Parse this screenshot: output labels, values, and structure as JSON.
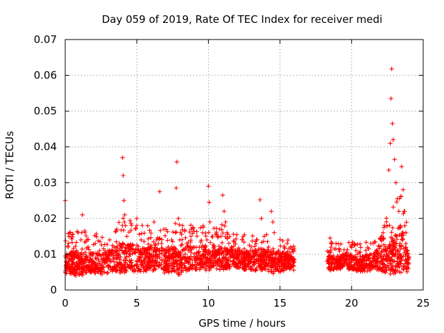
{
  "chart_data": {
    "type": "scatter",
    "title": "Day 059 of 2019, Rate Of TEC Index for receiver medi",
    "xlabel": "GPS time / hours",
    "ylabel": "ROTI / TECUs",
    "xlim": [
      0,
      25
    ],
    "ylim": [
      0,
      0.07
    ],
    "xticks": [
      0,
      5,
      10,
      15,
      20,
      25
    ],
    "yticks": [
      0,
      0.01,
      0.02,
      0.03,
      0.04,
      0.05,
      0.06,
      0.07
    ],
    "xtick_labels": [
      "0",
      "5",
      "10",
      "15",
      "20",
      "25"
    ],
    "ytick_labels": [
      "0",
      "0.01",
      "0.02",
      "0.03",
      "0.04",
      "0.05",
      "0.06",
      "0.07"
    ],
    "grid": true,
    "marker": "+",
    "marker_color": "#ff0000",
    "series": [
      {
        "name": "ROTI",
        "x": [
          0.0,
          0.05,
          0.2,
          0.35,
          0.5,
          0.8,
          1.1,
          1.2,
          1.3,
          1.6,
          1.9,
          2.1,
          2.4,
          2.8,
          3.1,
          3.4,
          3.6,
          3.8,
          4.0,
          4.05,
          4.1,
          4.15,
          4.2,
          4.3,
          4.5,
          4.8,
          5.0,
          5.3,
          5.5,
          5.9,
          6.2,
          6.5,
          6.6,
          6.9,
          7.2,
          7.5,
          7.7,
          7.75,
          7.8,
          7.9,
          8.0,
          8.2,
          8.5,
          8.8,
          9.0,
          9.3,
          9.6,
          9.9,
          10.0,
          10.05,
          10.1,
          10.4,
          10.7,
          11.0,
          11.1,
          11.2,
          11.3,
          11.6,
          11.9,
          12.2,
          12.5,
          12.8,
          13.1,
          13.4,
          13.6,
          13.7,
          13.9,
          14.2,
          14.4,
          14.5,
          14.6,
          14.9,
          15.2,
          15.5,
          15.8,
          16.0,
          18.3,
          18.5,
          18.8,
          19.1,
          19.4,
          19.7,
          20.0,
          20.3,
          20.6,
          20.9,
          21.2,
          21.5,
          21.8,
          22.0,
          22.2,
          22.4,
          22.6,
          22.7,
          22.75,
          22.8,
          22.85,
          22.9,
          23.0,
          23.1,
          23.2,
          23.3,
          23.4,
          23.5,
          23.6,
          23.7,
          23.8,
          23.9,
          24.0
        ],
        "y": [
          0.025,
          0.0095,
          0.012,
          0.016,
          0.0085,
          0.011,
          0.014,
          0.021,
          0.01,
          0.012,
          0.0095,
          0.013,
          0.011,
          0.0105,
          0.014,
          0.012,
          0.017,
          0.013,
          0.037,
          0.032,
          0.025,
          0.021,
          0.018,
          0.015,
          0.012,
          0.0105,
          0.02,
          0.014,
          0.011,
          0.0115,
          0.019,
          0.013,
          0.0275,
          0.017,
          0.012,
          0.0135,
          0.016,
          0.0285,
          0.0358,
          0.02,
          0.014,
          0.018,
          0.013,
          0.017,
          0.012,
          0.0105,
          0.016,
          0.014,
          0.029,
          0.0245,
          0.019,
          0.012,
          0.015,
          0.0265,
          0.022,
          0.019,
          0.016,
          0.012,
          0.011,
          0.01,
          0.0115,
          0.0095,
          0.011,
          0.014,
          0.0252,
          0.02,
          0.015,
          0.012,
          0.022,
          0.019,
          0.016,
          0.011,
          0.0105,
          0.0095,
          0.009,
          0.0085,
          0.008,
          0.0145,
          0.0115,
          0.0095,
          0.01,
          0.0085,
          0.0095,
          0.011,
          0.0085,
          0.009,
          0.0115,
          0.013,
          0.01,
          0.0145,
          0.016,
          0.011,
          0.0335,
          0.041,
          0.0535,
          0.0618,
          0.0465,
          0.042,
          0.0365,
          0.03,
          0.0255,
          0.022,
          0.018,
          0.0345,
          0.028,
          0.022,
          0.016,
          0.011,
          0.009
        ],
        "band_x": [
          0.0,
          0.5,
          1.0,
          1.5,
          2.0,
          2.5,
          3.0,
          3.5,
          4.0,
          4.5,
          5.0,
          5.5,
          6.0,
          6.5,
          7.0,
          7.5,
          8.0,
          8.5,
          9.0,
          9.5,
          10.0,
          10.5,
          11.0,
          11.5,
          12.0,
          12.5,
          13.0,
          13.5,
          14.0,
          14.5,
          15.0,
          15.5,
          16.0,
          18.3,
          18.5,
          19.0,
          19.5,
          20.0,
          20.5,
          21.0,
          21.5,
          22.0,
          22.5,
          23.0,
          23.5,
          24.0
        ],
        "band_y_min": [
          0.0045,
          0.004,
          0.0035,
          0.004,
          0.0045,
          0.004,
          0.0045,
          0.005,
          0.0045,
          0.005,
          0.005,
          0.0045,
          0.005,
          0.005,
          0.0045,
          0.005,
          0.004,
          0.005,
          0.005,
          0.0055,
          0.005,
          0.005,
          0.005,
          0.0055,
          0.006,
          0.0055,
          0.005,
          0.0055,
          0.005,
          0.0045,
          0.005,
          0.0055,
          0.0055,
          0.006,
          0.0055,
          0.0055,
          0.006,
          0.0055,
          0.005,
          0.005,
          0.0055,
          0.005,
          0.004,
          0.004,
          0.0045,
          0.005
        ],
        "band_y_max": [
          0.0155,
          0.0165,
          0.017,
          0.0165,
          0.016,
          0.0155,
          0.0165,
          0.0175,
          0.021,
          0.0195,
          0.019,
          0.018,
          0.0185,
          0.018,
          0.0175,
          0.0185,
          0.02,
          0.019,
          0.0175,
          0.0185,
          0.0185,
          0.0175,
          0.0185,
          0.017,
          0.016,
          0.0155,
          0.016,
          0.0175,
          0.018,
          0.017,
          0.0155,
          0.0145,
          0.0125,
          0.0125,
          0.0135,
          0.013,
          0.0135,
          0.0135,
          0.013,
          0.014,
          0.015,
          0.0165,
          0.021,
          0.024,
          0.027,
          0.015
        ]
      }
    ]
  }
}
